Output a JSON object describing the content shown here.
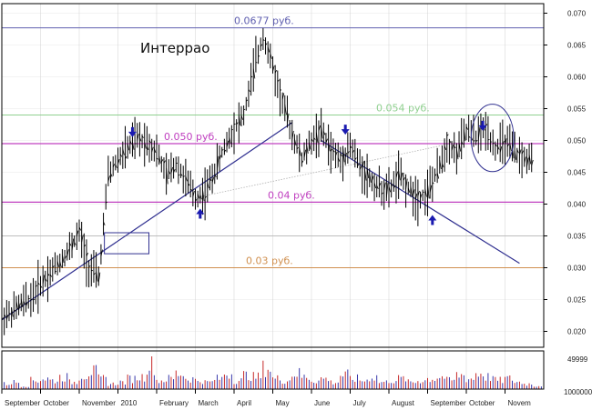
{
  "chart_data": {
    "type": "ohlc",
    "title": "Интеррао",
    "colors": {
      "price": "#000000",
      "trendline": "#303090",
      "support_magenta": "#c040c0",
      "level_0677": "#6060b0",
      "level_054": "#90d090",
      "level_03": "#d09050",
      "arrow": "#1a1ab0",
      "volume_red": "#c01010",
      "volume_blue": "#2020a0"
    },
    "y_ticks": [
      "0.070",
      "0.065",
      "0.060",
      "0.055",
      "0.050",
      "0.045",
      "0.040",
      "0.035",
      "0.030",
      "0.025",
      "0.020"
    ],
    "y_range": [
      0.0175,
      0.0715
    ],
    "x_months": [
      "September",
      "October",
      "November",
      "2010",
      "February",
      "March",
      "April",
      "May",
      "June",
      "July",
      "August",
      "September",
      "October",
      "Novem"
    ],
    "x_range": [
      0,
      56
    ],
    "levels": [
      {
        "value": 0.0677,
        "label": "0.0677 руб.",
        "color_key": "level_0677"
      },
      {
        "value": 0.054,
        "label": "0.054 руб.",
        "color_key": "level_054"
      },
      {
        "value": 0.0495,
        "label": "0.050 руб.",
        "color_key": "support_magenta"
      },
      {
        "value": 0.0403,
        "label": "0.04 руб.",
        "color_key": "support_magenta"
      },
      {
        "value": 0.035,
        "label": "",
        "color_key": "grid"
      },
      {
        "value": 0.03,
        "label": "0.03 руб.",
        "color_key": "level_03"
      }
    ],
    "trendlines": [
      {
        "from": [
          0,
          0.0218
        ],
        "to": [
          30,
          0.0528
        ]
      },
      {
        "from": [
          33,
          0.05
        ],
        "to": [
          53.5,
          0.0307
        ]
      },
      {
        "from": [
          20,
          0.041
        ],
        "to": [
          47,
          0.0497
        ],
        "dotted": true
      }
    ],
    "arrows": [
      {
        "x": 13.5,
        "y": 0.0508,
        "dir": "down"
      },
      {
        "x": 20.5,
        "y": 0.039,
        "dir": "up"
      },
      {
        "x": 35.5,
        "y": 0.0512,
        "dir": "down"
      },
      {
        "x": 44.5,
        "y": 0.038,
        "dir": "up"
      },
      {
        "x": 49.7,
        "y": 0.0518,
        "dir": "down"
      }
    ],
    "box": {
      "x": [
        10.6,
        15.2
      ],
      "y": [
        0.0322,
        0.0355
      ]
    },
    "ellipse": {
      "cx": 50.7,
      "cy": 0.0504,
      "rx": 2.2,
      "ry": 0.0053
    },
    "price_series": [
      0.0223,
      0.0229,
      0.0243,
      0.0251,
      0.0275,
      0.0293,
      0.031,
      0.033,
      0.0355,
      0.03,
      0.0285,
      0.0445,
      0.047,
      0.0488,
      0.0503,
      0.0498,
      0.0482,
      0.0445,
      0.0464,
      0.0437,
      0.041,
      0.0418,
      0.0452,
      0.049,
      0.052,
      0.054,
      0.061,
      0.0665,
      0.0615,
      0.056,
      0.051,
      0.047,
      0.05,
      0.0515,
      0.0485,
      0.047,
      0.0492,
      0.046,
      0.044,
      0.0425,
      0.042,
      0.0445,
      0.0425,
      0.041,
      0.042,
      0.045,
      0.0495,
      0.048,
      0.0515,
      0.0505,
      0.052,
      0.0488,
      0.0495,
      0.048,
      0.0471,
      0.0466
    ],
    "volume_series": [
      3,
      4,
      2,
      5,
      6,
      5,
      7,
      4,
      8,
      10,
      6,
      3,
      4,
      6,
      7,
      14,
      5,
      6,
      9,
      6,
      5,
      4,
      6,
      9,
      5,
      8,
      7,
      12,
      6,
      5,
      9,
      7,
      5,
      6,
      4,
      8,
      6,
      5,
      7,
      4,
      5,
      6,
      4,
      5,
      6,
      7,
      5,
      8,
      6,
      9,
      7,
      5,
      6,
      4,
      3,
      2
    ],
    "volume_labels": [
      "49999",
      "1000000"
    ]
  }
}
